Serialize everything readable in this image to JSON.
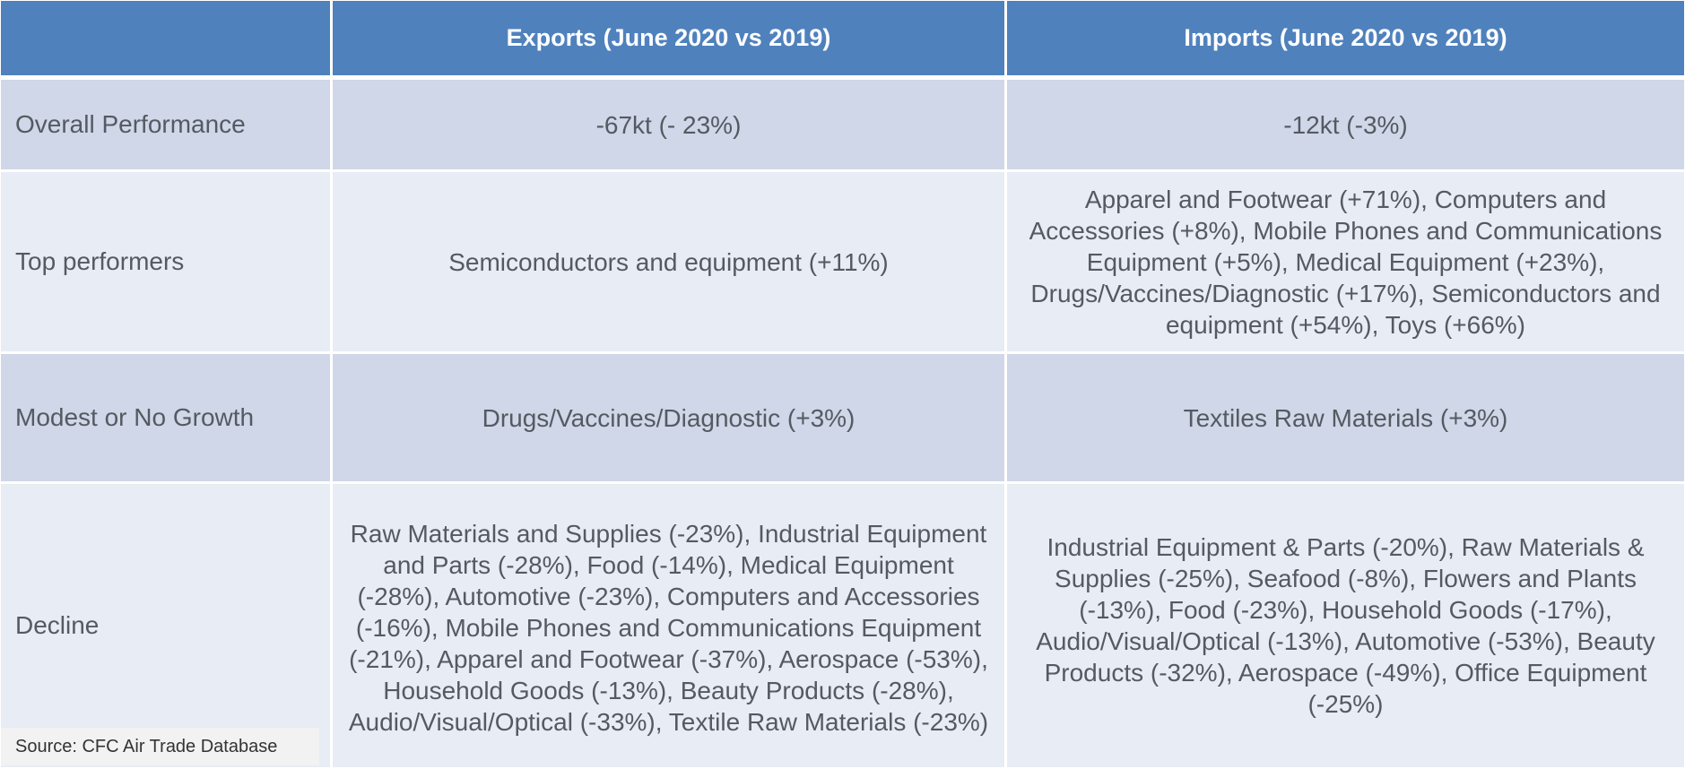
{
  "table": {
    "header": {
      "corner": "",
      "exports": "Exports (June 2020 vs 2019)",
      "imports": "Imports (June 2020 vs 2019)"
    },
    "rows": [
      {
        "label": "Overall Performance",
        "exports": "-67kt (- 23%)",
        "imports": "-12kt (-3%)"
      },
      {
        "label": "Top performers",
        "exports": "Semiconductors and equipment (+11%)",
        "imports": "Apparel and Footwear (+71%), Computers and Accessories (+8%), Mobile Phones and Communications Equipment (+5%), Medical Equipment (+23%), Drugs/Vaccines/Diagnostic (+17%), Semiconductors and equipment (+54%), Toys (+66%)"
      },
      {
        "label": "Modest or No Growth",
        "exports": "Drugs/Vaccines/Diagnostic (+3%)",
        "imports": "Textiles Raw Materials (+3%)"
      },
      {
        "label": "Decline",
        "exports": "Raw Materials and Supplies (-23%), Industrial Equipment and Parts (-28%), Food (-14%), Medical Equipment (-28%), Automotive (-23%), Computers and Accessories (-16%), Mobile Phones and Communications Equipment (-21%),  Apparel and Footwear (-37%), Aerospace (-53%), Household Goods (-13%), Beauty Products (-28%), Audio/Visual/Optical (-33%), Textile Raw Materials (-23%)",
        "imports": "Industrial Equipment & Parts (-20%), Raw Materials & Supplies (-25%), Seafood (-8%), Flowers and Plants (-13%), Food (-23%), Household Goods (-17%), Audio/Visual/Optical (-13%), Automotive (-53%), Beauty Products (-32%), Aerospace (-49%), Office Equipment (-25%)"
      }
    ]
  },
  "source": "Source: CFC Air Trade Database",
  "colors": {
    "header_bg": "#4f81bd",
    "row_dark": "#cfd7e8",
    "row_light": "#e8ecf4",
    "text": "#555a62"
  }
}
